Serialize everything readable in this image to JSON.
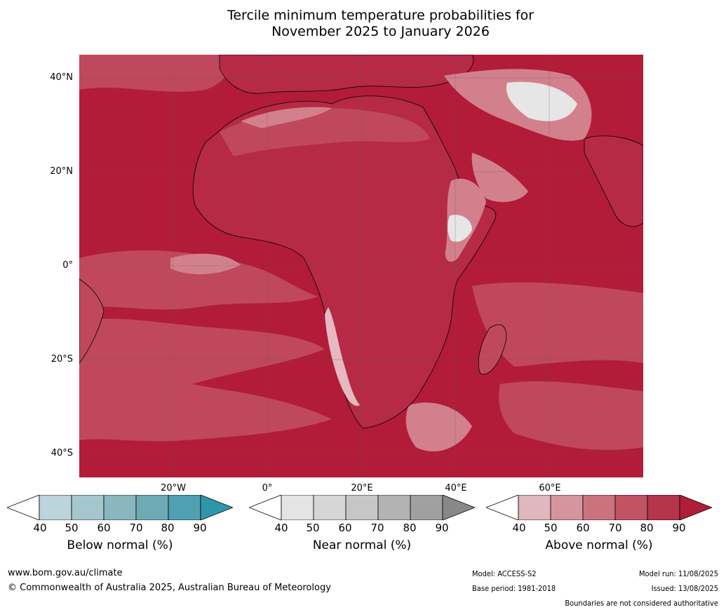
{
  "title_line1": "Tercile minimum temperature probabilities for",
  "title_line2": "November 2025 to January 2026",
  "lat_labels": [
    "40°N",
    "20°N",
    "0°",
    "20°S",
    "40°S"
  ],
  "lon_labels": [
    "20°W",
    "0°",
    "20°E",
    "40°E",
    "60°E"
  ],
  "colorbars": [
    {
      "label": "Below normal (%)",
      "ticks": [
        "40",
        "50",
        "60",
        "70",
        "80",
        "90"
      ],
      "colors": [
        "#bcd4db",
        "#a5c6cd",
        "#8bb6c0",
        "#6eaab6",
        "#4fa0b1"
      ],
      "over": "#2f95aa"
    },
    {
      "label": "Near normal (%)",
      "ticks": [
        "40",
        "50",
        "60",
        "70",
        "80",
        "90"
      ],
      "colors": [
        "#e4e4e4",
        "#d6d6d6",
        "#c6c6c6",
        "#b3b3b3",
        "#a0a0a0"
      ],
      "over": "#888888"
    },
    {
      "label": "Above normal (%)",
      "ticks": [
        "40",
        "50",
        "60",
        "70",
        "80",
        "90"
      ],
      "colors": [
        "#e0b7bd",
        "#d5959e",
        "#ca737f",
        "#c05463",
        "#b5354a"
      ],
      "over": "#b01d38"
    }
  ],
  "footer": {
    "website": "www.bom.gov.au/climate",
    "copyright": "© Commonwealth of Australia 2025, Australian Bureau of Meteorology",
    "model": "Model: ACCESS-S2",
    "base_period": "Base period: 1981-2018",
    "model_run": "Model run: 11/08/2025",
    "issued": "Issued: 13/08/2025",
    "disclaimer": "Boundaries are not considered authoritative"
  },
  "map_colors": {
    "deep_red": "#b21c39",
    "mid_red": "#c0485c",
    "light_red": "#d3808d",
    "pale": "#e6b9c0",
    "near_normal": "#e6e6e6"
  }
}
